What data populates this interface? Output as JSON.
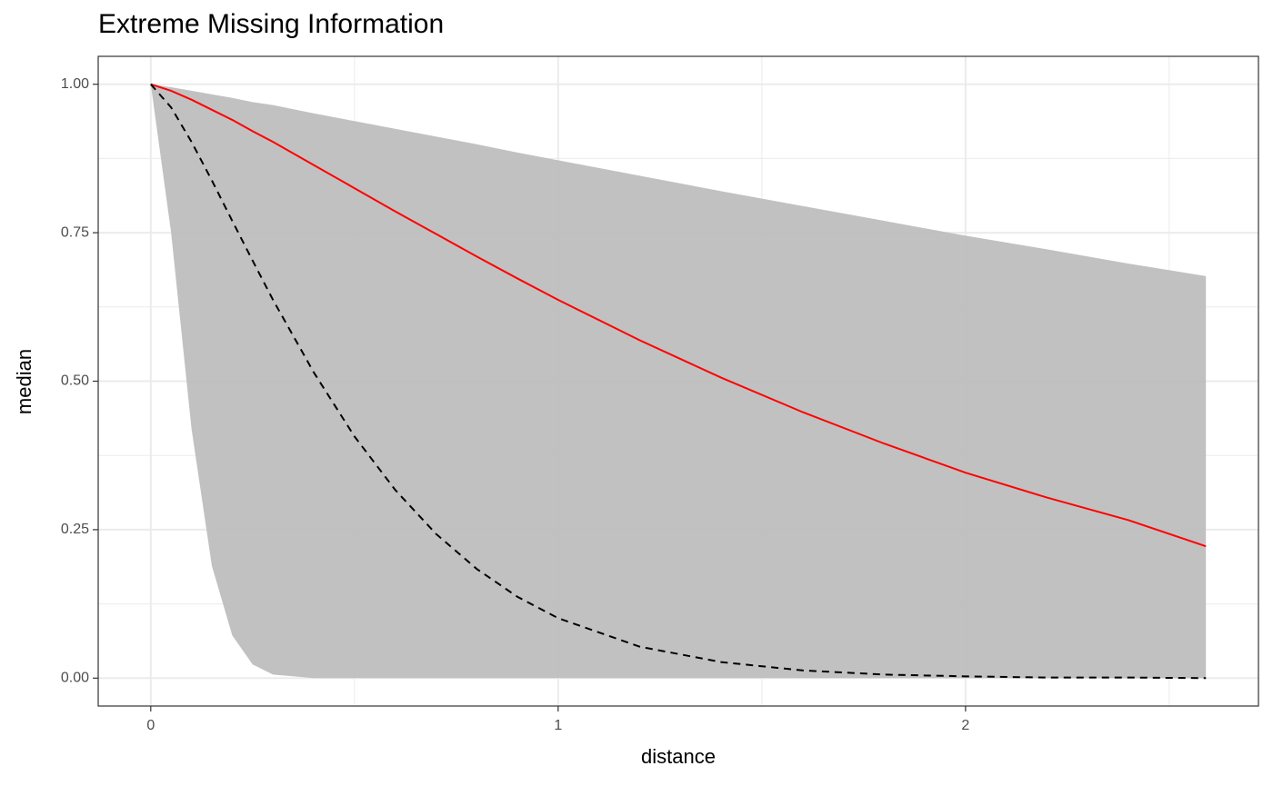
{
  "chart_data": {
    "type": "line",
    "title": "Extreme Missing Information",
    "x_label": "distance",
    "y_label": "median",
    "x": [
      0,
      0.05,
      0.1,
      0.15,
      0.2,
      0.25,
      0.3,
      0.4,
      0.5,
      0.6,
      0.7,
      0.8,
      0.9,
      1.0,
      1.2,
      1.4,
      1.6,
      1.8,
      2.0,
      2.2,
      2.4,
      2.59
    ],
    "ribbon": {
      "color": "#bebebe",
      "lower": [
        1,
        0.75,
        0.42,
        0.189,
        0.072,
        0.023,
        0.006,
        0.0,
        0,
        0,
        0,
        0,
        0,
        0,
        0,
        0,
        0,
        0,
        0,
        0,
        0,
        0
      ],
      "upper": [
        1,
        0.995,
        0.989,
        0.983,
        0.977,
        0.97,
        0.965,
        0.951,
        0.938,
        0.925,
        0.912,
        0.899,
        0.885,
        0.872,
        0.846,
        0.82,
        0.795,
        0.77,
        0.745,
        0.722,
        0.698,
        0.677
      ]
    },
    "series": [
      {
        "color": "#ff0000",
        "dash": false,
        "values": [
          1,
          0.989,
          0.974,
          0.957,
          0.94,
          0.921,
          0.903,
          0.864,
          0.825,
          0.786,
          0.748,
          0.71,
          0.673,
          0.637,
          0.569,
          0.506,
          0.448,
          0.395,
          0.346,
          0.304,
          0.266,
          0.222
        ]
      },
      {
        "color": "#000000",
        "dash": true,
        "values": [
          1,
          0.961,
          0.903,
          0.838,
          0.77,
          0.703,
          0.637,
          0.515,
          0.407,
          0.317,
          0.243,
          0.184,
          0.137,
          0.101,
          0.053,
          0.027,
          0.013,
          0.006,
          0.003,
          0.001,
          0.001,
          0.0
        ]
      }
    ],
    "xlim": [
      -0.129,
      2.719
    ],
    "ylim": [
      -0.047,
      1.047
    ],
    "xticks": [
      0,
      1,
      2
    ],
    "yticks": [
      {
        "value": 0,
        "label": "0.00"
      },
      {
        "value": 0.25,
        "label": "0.25"
      },
      {
        "value": 0.5,
        "label": "0.50"
      },
      {
        "value": 0.75,
        "label": "0.75"
      },
      {
        "value": 1,
        "label": "1.00"
      }
    ],
    "x_minor_grid": [
      0.5,
      1.5,
      2.5
    ],
    "y_minor_grid": [
      0.125,
      0.375,
      0.625,
      0.875
    ],
    "grid": true
  }
}
